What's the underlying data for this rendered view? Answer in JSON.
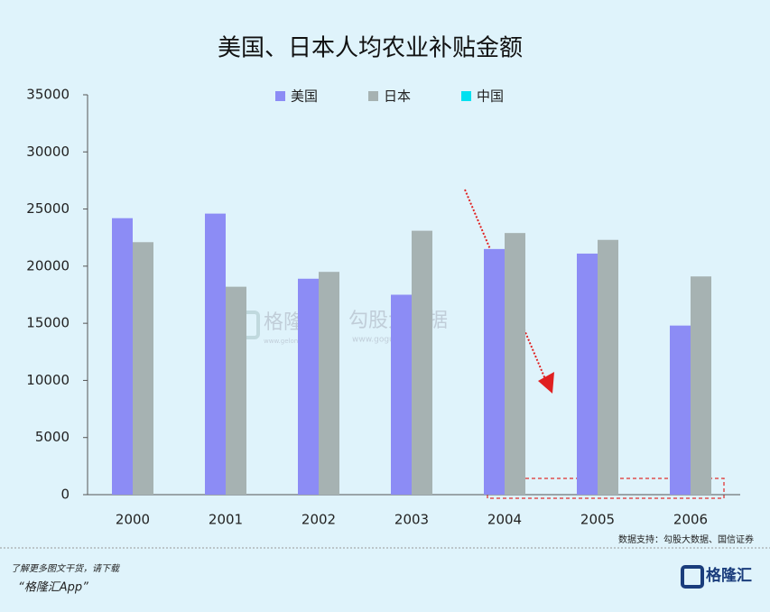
{
  "chart_data": {
    "type": "bar",
    "title": "美国、日本人均农业补贴金额",
    "categories": [
      "2000",
      "2001",
      "2002",
      "2003",
      "2004",
      "2005",
      "2006"
    ],
    "series": [
      {
        "name": "美国",
        "color": "#8c8cf5",
        "values": [
          24200,
          24600,
          18900,
          17500,
          21500,
          21100,
          14800
        ]
      },
      {
        "name": "日本",
        "color": "#a6b2b2",
        "values": [
          22100,
          18200,
          19500,
          23100,
          22900,
          22300,
          19100
        ]
      },
      {
        "name": "中国",
        "color": "#00e0f0",
        "values": [
          null,
          null,
          null,
          null,
          null,
          null,
          null
        ]
      }
    ],
    "ylim": [
      0,
      35000
    ],
    "yticks": [
      0,
      5000,
      10000,
      15000,
      20000,
      25000,
      30000,
      35000
    ],
    "grid": false,
    "legend": "top"
  },
  "watermark": {
    "brand": "格隆汇",
    "brand_url": "www.gelonghui.com",
    "data": "勾股大数据",
    "data_url": "www.gogudata.com"
  },
  "footer": {
    "source": "数据支持：勾股大数据、国信证券",
    "promo": "了解更多图文干货，请下载",
    "app": "“格隆汇App”",
    "logo": "格隆汇"
  }
}
